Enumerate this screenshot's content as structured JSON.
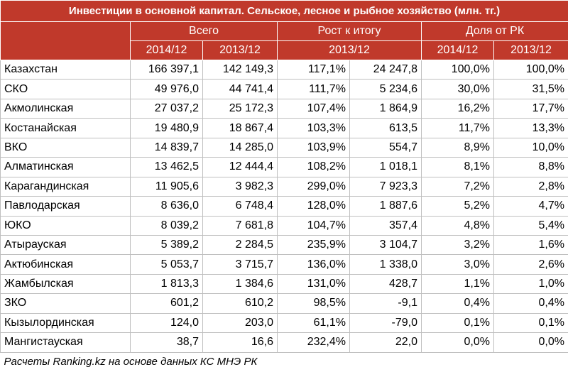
{
  "table": {
    "title": "Инвестиции в основной капитал. Сельское, лесное и рыбное хозяйство (млн. тг.)",
    "header_groups": [
      "Всего",
      "Рост к итогу",
      "Доля от РК"
    ],
    "header_periods": [
      "2014/12",
      "2013/12",
      "2013/12",
      "2014/12",
      "2013/12"
    ],
    "rows": [
      [
        "Казахстан",
        "166 397,1",
        "142 149,3",
        "117,1%",
        "24 247,8",
        "100,0%",
        "100,0%"
      ],
      [
        "СКО",
        "49 976,0",
        "44 741,4",
        "111,7%",
        "5 234,6",
        "30,0%",
        "31,5%"
      ],
      [
        "Акмолинская",
        "27 037,2",
        "25 172,3",
        "107,4%",
        "1 864,9",
        "16,2%",
        "17,7%"
      ],
      [
        "Костанайская",
        "19 480,9",
        "18 867,4",
        "103,3%",
        "613,5",
        "11,7%",
        "13,3%"
      ],
      [
        "ВКО",
        "14 839,7",
        "14 285,0",
        "103,9%",
        "554,7",
        "8,9%",
        "10,0%"
      ],
      [
        "Алматинская",
        "13 462,5",
        "12 444,4",
        "108,2%",
        "1 018,1",
        "8,1%",
        "8,8%"
      ],
      [
        "Карагандинская",
        "11 905,6",
        "3 982,3",
        "299,0%",
        "7 923,3",
        "7,2%",
        "2,8%"
      ],
      [
        "Павлодарская",
        "8 636,0",
        "6 748,4",
        "128,0%",
        "1 887,6",
        "5,2%",
        "4,7%"
      ],
      [
        "ЮКО",
        "8 039,2",
        "7 681,8",
        "104,7%",
        "357,4",
        "4,8%",
        "5,4%"
      ],
      [
        "Атырауская",
        "5 389,2",
        "2 284,5",
        "235,9%",
        "3 104,7",
        "3,2%",
        "1,6%"
      ],
      [
        "Актюбинская",
        "5 053,7",
        "3 715,7",
        "136,0%",
        "1 338,0",
        "3,0%",
        "2,6%"
      ],
      [
        "Жамбылская",
        "1 813,3",
        "1 384,6",
        "131,0%",
        "428,7",
        "1,1%",
        "1,0%"
      ],
      [
        "ЗКО",
        "601,2",
        "610,2",
        "98,5%",
        "-9,1",
        "0,4%",
        "0,4%"
      ],
      [
        "Кызылординская",
        "124,0",
        "203,0",
        "61,1%",
        "-79,0",
        "0,1%",
        "0,1%"
      ],
      [
        "Мангистауская",
        "38,7",
        "16,6",
        "232,4%",
        "22,0",
        "0,0%",
        "0,0%"
      ]
    ],
    "footer": "Расчеты Ranking.kz на основе данных КС МНЭ РК"
  }
}
